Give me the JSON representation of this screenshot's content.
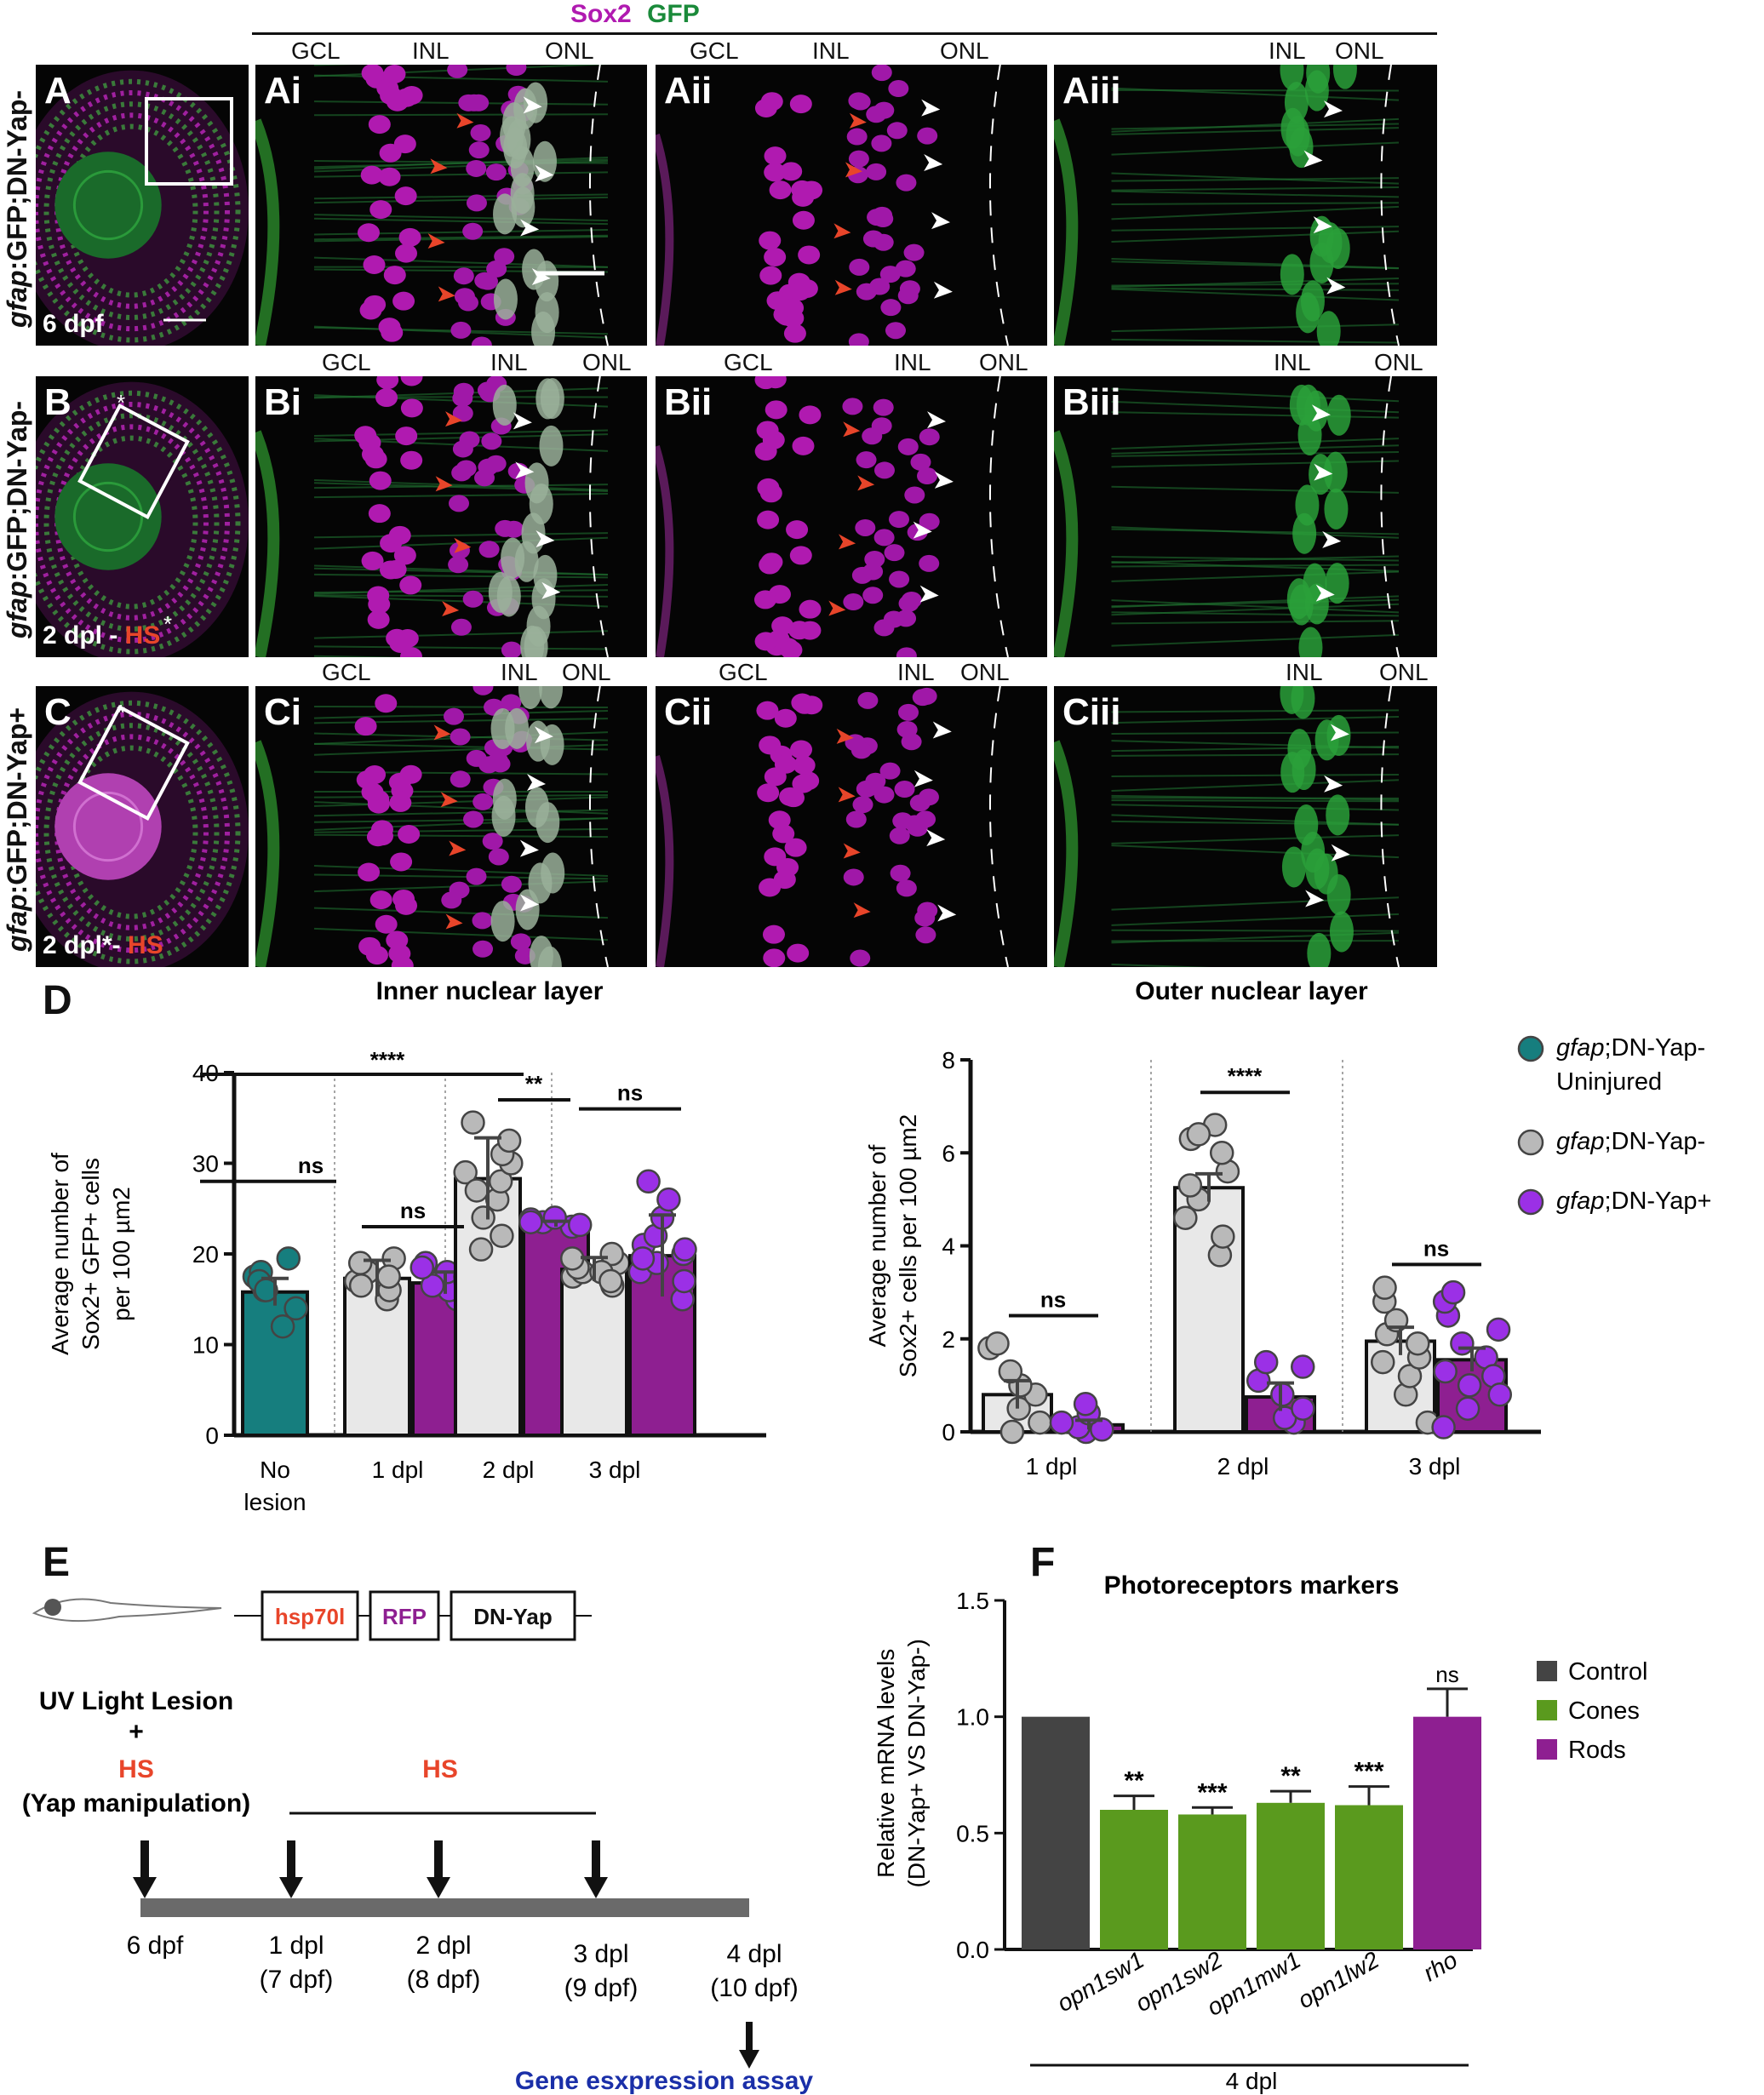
{
  "header": {
    "sox2": "Sox2",
    "gfp": "GFP"
  },
  "layers": {
    "gcl": "GCL",
    "inl": "INL",
    "onl": "ONL"
  },
  "rows": [
    {
      "genotype_italic": "gfap",
      "genotype_rest": ":GFP;DN-Yap-",
      "overlay": "6 dpf",
      "hs": "",
      "panels": [
        "A",
        "Ai",
        "Aii",
        "Aiii"
      ]
    },
    {
      "genotype_italic": "gfap",
      "genotype_rest": ":GFP;DN-Yap-",
      "overlay": "2 dpl -",
      "hs": "HS",
      "panels": [
        "B",
        "Bi",
        "Bii",
        "Biii"
      ]
    },
    {
      "genotype_italic": "gfap",
      "genotype_rest": ":GFP;DN-Yap+",
      "overlay": "2 dpl*-",
      "hs": "HS",
      "panels": [
        "C",
        "Ci",
        "Cii",
        "Ciii"
      ]
    }
  ],
  "colors": {
    "magenta": "#b01ab0",
    "green": "#1a8a3a",
    "arrow_red": "#e8452a",
    "teal": "#167e7e",
    "grey": "#b9b9b9",
    "purple": "#9b30e6",
    "cones": "#5a9a1e",
    "rods": "#8e1f91",
    "control": "#444444",
    "hs_red": "#e8452a",
    "assay_blue": "#1a2fa8"
  },
  "section_labels": {
    "d": "D",
    "e": "E",
    "f": "F"
  },
  "chart_data": [
    {
      "type": "bar",
      "title": "Inner nuclear layer",
      "ylabel": "Average number of Sox2+ GFP+ cells per 100 µm2",
      "ylabel_lines": [
        "Average number of",
        "Sox2+ GFP+ cells",
        "per 100 µm2"
      ],
      "ylim": [
        0,
        40
      ],
      "yticks": [
        0,
        10,
        20,
        30,
        40
      ],
      "categories": [
        "No lesion",
        "1 dpl",
        "2 dpl",
        "3 dpl"
      ],
      "category_lines": [
        [
          "No",
          "lesion"
        ],
        [
          "1 dpl"
        ],
        [
          "2 dpl"
        ],
        [
          "3 dpl"
        ]
      ],
      "series": [
        {
          "name": "gfap;DN-Yap- Uninjured",
          "values": [
            15.8,
            null,
            null,
            null
          ],
          "errors": [
            1.5,
            null,
            null,
            null
          ]
        },
        {
          "name": "gfap;DN-Yap-",
          "values": [
            null,
            17.3,
            28.3,
            18.3
          ],
          "errors": [
            null,
            2.0,
            4.5,
            1.3
          ]
        },
        {
          "name": "gfap;DN-Yap+",
          "values": [
            null,
            16.8,
            23.3,
            19.8
          ],
          "errors": [
            null,
            1.2,
            0.3,
            4.5
          ]
        }
      ],
      "points": {
        "uninjured": [
          12,
          14,
          16,
          17.5,
          18,
          19.5,
          17,
          16
        ],
        "yap_minus": [
          [
            15,
            16,
            17,
            18,
            19,
            19.5,
            17.5,
            16.5
          ],
          [
            22,
            24,
            26,
            28,
            29,
            30,
            31,
            32.5,
            34.5,
            27,
            20.5
          ],
          [
            16.5,
            17.5,
            18,
            18.5,
            19,
            19.5,
            20,
            18,
            17
          ]
        ],
        "yap_plus": [
          [
            15,
            16,
            17,
            18,
            19,
            17.5,
            16.5,
            18.5
          ],
          [
            23,
            23.5,
            24,
            23.2,
            23.8,
            23.5
          ],
          [
            15,
            17,
            18,
            19,
            20,
            21,
            22,
            24,
            26,
            28,
            19.5,
            20.5
          ]
        ]
      },
      "significance": [
        {
          "label": "****",
          "from": "No lesion",
          "to": "2 dpl"
        },
        {
          "label": "**",
          "from": "No lesion",
          "to": "3 dpl"
        },
        {
          "label": "ns",
          "from": "No lesion",
          "to": "1 dpl"
        },
        {
          "label": "ns",
          "group": "1 dpl"
        },
        {
          "label": "**",
          "group": "2 dpl"
        },
        {
          "label": "ns",
          "group": "3 dpl"
        }
      ]
    },
    {
      "type": "bar",
      "title": "Outer nuclear layer",
      "ylabel": "Average number of Sox2+ cells per 100 µm2",
      "ylabel_lines": [
        "Average number of",
        "Sox2+ cells per 100 µm2"
      ],
      "ylim": [
        0,
        8
      ],
      "yticks": [
        0,
        2,
        4,
        6,
        8
      ],
      "categories": [
        "1 dpl",
        "2 dpl",
        "3 dpl"
      ],
      "series": [
        {
          "name": "gfap;DN-Yap-",
          "values": [
            0.8,
            5.25,
            1.95
          ],
          "errors": [
            0.3,
            0.3,
            0.3
          ]
        },
        {
          "name": "gfap;DN-Yap+",
          "values": [
            0.15,
            0.75,
            1.55
          ],
          "errors": [
            0.1,
            0.3,
            0.25
          ]
        }
      ],
      "points": {
        "yap_minus": [
          [
            0,
            0.2,
            0.5,
            0.8,
            1.0,
            1.3,
            1.8,
            1.9
          ],
          [
            3.8,
            4.2,
            4.6,
            5.0,
            5.3,
            5.6,
            6.0,
            6.3,
            6.6,
            6.4
          ],
          [
            0.2,
            0.8,
            1.2,
            1.6,
            1.9,
            2.1,
            2.4,
            2.8,
            3.1,
            1.5
          ]
        ],
        "yap_plus": [
          [
            0,
            0.05,
            0.1,
            0.2,
            0.4,
            0.6
          ],
          [
            0.2,
            0.3,
            0.5,
            0.8,
            1.1,
            1.4,
            1.5
          ],
          [
            0.1,
            0.5,
            1.0,
            1.3,
            1.6,
            1.9,
            2.2,
            2.5,
            2.8,
            3.0,
            1.2,
            0.8
          ]
        ]
      },
      "significance": [
        {
          "label": "ns",
          "group": "1 dpl"
        },
        {
          "label": "****",
          "group": "2 dpl"
        },
        {
          "label": "ns",
          "group": "3 dpl"
        }
      ],
      "legend": [
        {
          "italic": "gfap",
          "rest": ";DN-Yap-",
          "line2": "Uninjured"
        },
        {
          "italic": "gfap",
          "rest": ";DN-Yap-",
          "line2": ""
        },
        {
          "italic": "gfap",
          "rest": ";DN-Yap+",
          "line2": ""
        }
      ]
    },
    {
      "type": "bar",
      "title": "Photoreceptors markers",
      "ylabel": "Relative mRNA levels (DN-Yap+ VS DN-Yap-)",
      "ylabel_lines": [
        "Relative mRNA levels",
        "(DN-Yap+ VS DN-Yap-)"
      ],
      "ylim": [
        0,
        1.5
      ],
      "yticks": [
        "0.0",
        "0.5",
        "1.0",
        "1.5"
      ],
      "categories": [
        "",
        "opn1sw1",
        "opn1sw2",
        "opn1mw1",
        "opn1lw2",
        "rho"
      ],
      "values": [
        1.0,
        0.6,
        0.58,
        0.63,
        0.62,
        1.0
      ],
      "errors": [
        0,
        0.06,
        0.03,
        0.05,
        0.08,
        0.12
      ],
      "groups": [
        "Control",
        "Cones",
        "Cones",
        "Cones",
        "Cones",
        "Rods"
      ],
      "significance": [
        "",
        "**",
        "***",
        "**",
        "***",
        "ns"
      ],
      "xgroup_label": "4 dpl",
      "legend": [
        "Control",
        "Cones",
        "Rods"
      ]
    }
  ],
  "panel_e": {
    "construct": [
      "hsp70l",
      "RFP",
      "DN-Yap"
    ],
    "lesion_line1": "UV Light Lesion",
    "plus": "+",
    "hs1": "HS",
    "yap_manip": "(Yap manipulation)",
    "hs2": "HS",
    "timepoints": [
      {
        "line1": "6 dpf",
        "line2": ""
      },
      {
        "line1": "1 dpl",
        "line2": "(7 dpf)"
      },
      {
        "line1": "2 dpl",
        "line2": "(8 dpf)"
      },
      {
        "line1": "3 dpl",
        "line2": "(9 dpf)"
      },
      {
        "line1": "4 dpl",
        "line2": "(10 dpf)"
      }
    ],
    "assay": "Gene esxpression assay"
  }
}
